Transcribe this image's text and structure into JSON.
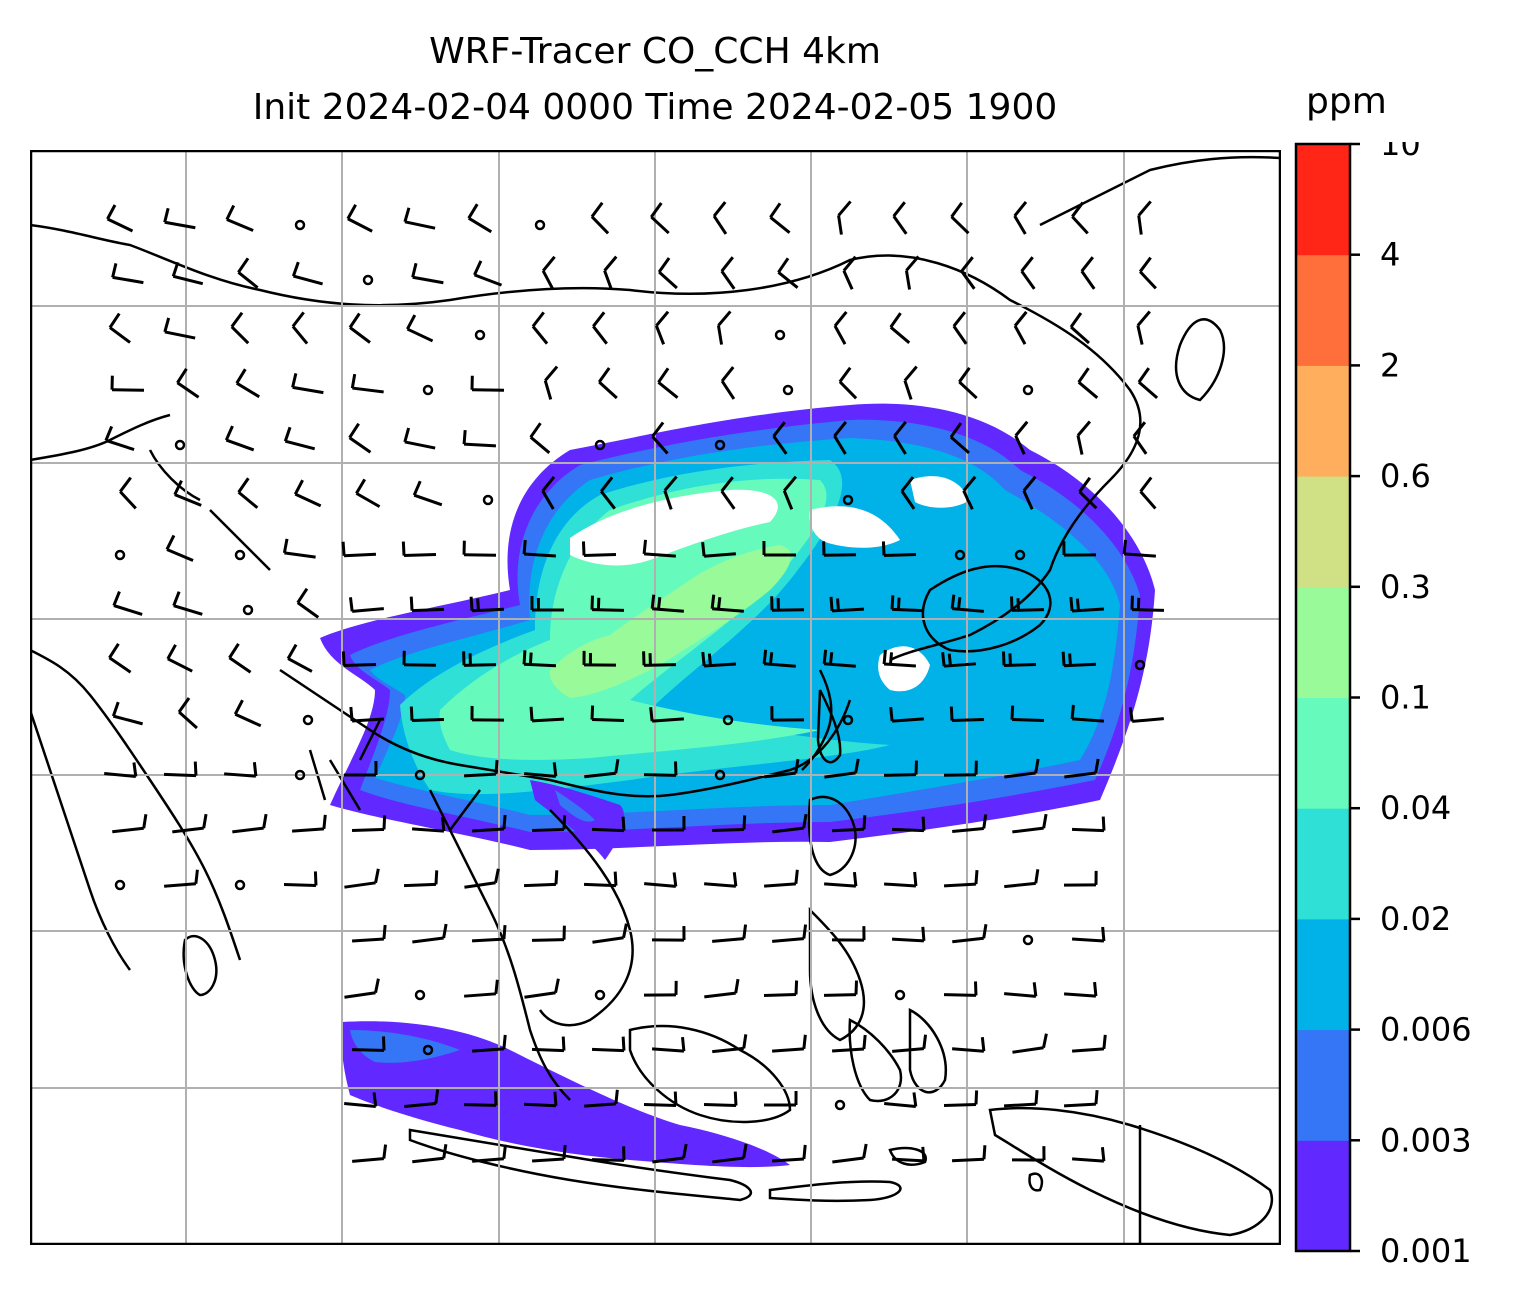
{
  "figure": {
    "title_line1": "WRF-Tracer CO_CCH 4km",
    "title_line2": "Init 2024-02-04 0000 Time 2024-02-05 1900"
  },
  "colorbar": {
    "unit": "ppm",
    "levels": [
      "0.001",
      "0.003",
      "0.006",
      "0.02",
      "0.04",
      "0.1",
      "0.3",
      "0.6",
      "2",
      "4",
      "10"
    ],
    "colors": [
      "#6128ff",
      "#3476f5",
      "#00b2e8",
      "#2ee0d6",
      "#66fbbd",
      "#98fa98",
      "#cfe085",
      "#ffae5d",
      "#ff6f3b",
      "#ff2618"
    ]
  },
  "map": {
    "gridlines": true,
    "coastlines": true,
    "wind_barbs": true,
    "tracer_field": "CO_CCH"
  }
}
